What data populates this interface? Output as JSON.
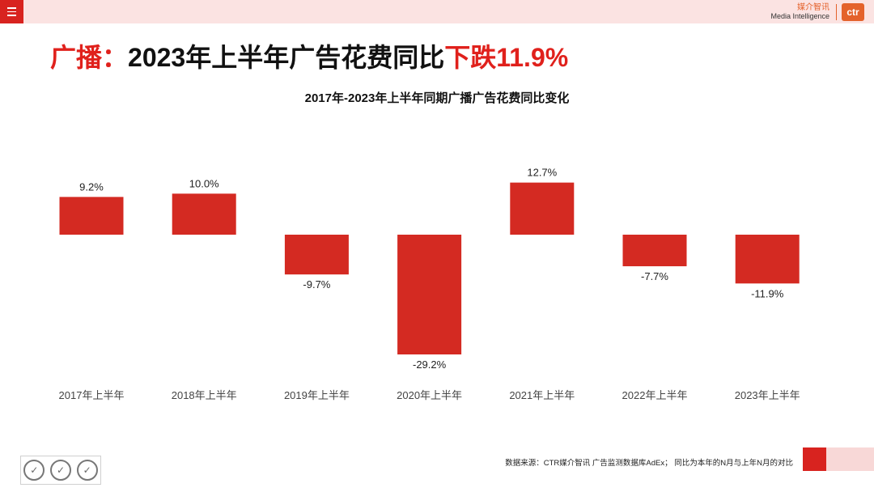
{
  "header": {
    "brand_cn": "媒介智讯",
    "brand_en": "Media Intelligence",
    "brand_logo": "ctr"
  },
  "title": {
    "part1": "广播：",
    "part2": "2023年上半年广告花费同比",
    "part3": "下跌11.9%"
  },
  "colors": {
    "accent": "#d8231f",
    "bar": "#d42a22",
    "pink": "#fbe3e2"
  },
  "chart_data": {
    "type": "bar",
    "title": "2017年-2023年上半年同期广播广告花费同比变化",
    "categories": [
      "2017年上半年",
      "2018年上半年",
      "2019年上半年",
      "2020年上半年",
      "2021年上半年",
      "2022年上半年",
      "2023年上半年"
    ],
    "values": [
      9.2,
      10.0,
      -9.7,
      -29.2,
      12.7,
      -7.7,
      -11.9
    ],
    "labels": [
      "9.2%",
      "10.0%",
      "-9.7%",
      "-29.2%",
      "12.7%",
      "-7.7%",
      "-11.9%"
    ],
    "unit": "%",
    "ylim": [
      -29.2,
      12.7
    ],
    "grid": false,
    "xlabel": "",
    "ylabel": ""
  },
  "footer": {
    "source": "数据来源：CTR媒介智讯 广告监测数据库AdEx；  同比为本年的N月与上年N月的对比",
    "cert_icons": [
      "sgs-cert-icon",
      "sgs-cert-icon",
      "sgs-cert-icon"
    ]
  }
}
